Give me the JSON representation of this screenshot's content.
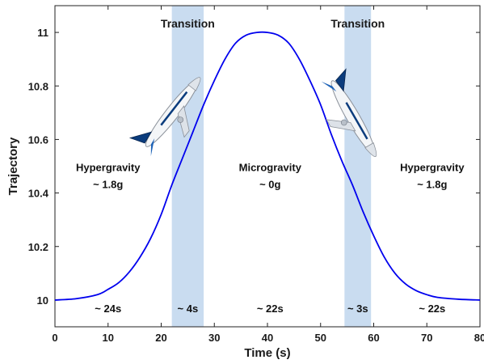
{
  "chart_data": {
    "type": "line",
    "xlabel": "Time (s)",
    "ylabel": "Trajectory",
    "xlim": [
      0,
      80
    ],
    "ylim": [
      9.9,
      11.1
    ],
    "xticks": [
      0,
      10,
      20,
      30,
      40,
      50,
      60,
      70,
      80
    ],
    "yticks": [
      10,
      10.2,
      10.4,
      10.6,
      10.8,
      11
    ],
    "ytick_labels": [
      "10",
      "10.2",
      "10.4",
      "10.6",
      "10.8",
      "11"
    ],
    "grid": false,
    "series": [
      {
        "color": "#0000ee",
        "x": [
          0,
          4,
          8,
          10,
          12,
          14,
          16,
          18,
          20,
          22,
          24,
          26,
          28,
          30,
          32,
          34,
          36,
          38,
          40,
          42,
          44,
          46,
          48,
          50,
          52,
          54,
          56,
          58,
          60,
          62,
          64,
          66,
          68,
          70,
          72,
          76,
          80
        ],
        "y": [
          10.0,
          10.005,
          10.02,
          10.04,
          10.065,
          10.105,
          10.16,
          10.23,
          10.32,
          10.43,
          10.53,
          10.63,
          10.73,
          10.82,
          10.9,
          10.96,
          10.99,
          11.0,
          11.0,
          10.99,
          10.96,
          10.9,
          10.82,
          10.73,
          10.62,
          10.52,
          10.43,
          10.33,
          10.24,
          10.16,
          10.1,
          10.06,
          10.035,
          10.02,
          10.01,
          10.003,
          10.0
        ]
      }
    ],
    "bands": [
      {
        "x0": 22,
        "x1": 28,
        "label": "Transition",
        "duration": "~ 4s",
        "color": "#c9dcf0"
      },
      {
        "x0": 54.5,
        "x1": 59.5,
        "label": "Transition",
        "duration": "~ 3s",
        "color": "#c9dcf0"
      }
    ],
    "phases": [
      {
        "name": "Hypergravity",
        "value": "~ 1.8g",
        "duration": "~ 24s",
        "x": 10,
        "y": 10.455,
        "dur_x": 10
      },
      {
        "name": "Microgravity",
        "value": "~ 0g",
        "duration": "~ 22s",
        "x": 40.5,
        "y": 10.455,
        "dur_x": 40.5
      },
      {
        "name": "Hypergravity",
        "value": "~ 1.8g",
        "duration": "~ 22s",
        "x": 71,
        "y": 10.455,
        "dur_x": 71
      }
    ],
    "aircraft_icons": [
      "airplane-climb-icon",
      "airplane-dive-icon"
    ]
  }
}
